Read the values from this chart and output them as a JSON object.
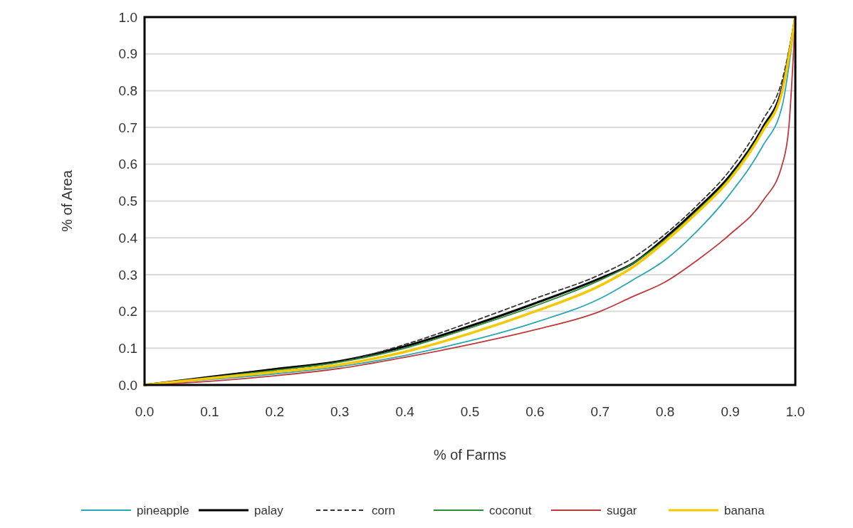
{
  "chart_data": {
    "type": "line",
    "xlabel": "% of Farms",
    "ylabel": "% of Area",
    "x": [
      0,
      0.1,
      0.2,
      0.3,
      0.4,
      0.5,
      0.6,
      0.7,
      0.75,
      0.8,
      0.85,
      0.9,
      0.95,
      0.98,
      1.0
    ],
    "series": [
      {
        "name": "pineapple",
        "color": "#2aa6b4",
        "values": [
          0,
          0.015,
          0.03,
          0.05,
          0.08,
          0.12,
          0.17,
          0.235,
          0.285,
          0.34,
          0.42,
          0.52,
          0.65,
          0.76,
          1.0
        ]
      },
      {
        "name": "palay",
        "color": "#000000",
        "values": [
          0,
          0.022,
          0.043,
          0.065,
          0.105,
          0.16,
          0.222,
          0.29,
          0.33,
          0.4,
          0.48,
          0.57,
          0.7,
          0.81,
          1.0
        ]
      },
      {
        "name": "corn",
        "color": "#333333",
        "line_style": "dashed",
        "values": [
          0,
          0.02,
          0.04,
          0.063,
          0.11,
          0.17,
          0.235,
          0.3,
          0.345,
          0.41,
          0.49,
          0.585,
          0.72,
          0.83,
          1.0
        ]
      },
      {
        "name": "coconut",
        "color": "#2e8b3a",
        "values": [
          0,
          0.02,
          0.04,
          0.062,
          0.1,
          0.155,
          0.215,
          0.285,
          0.33,
          0.395,
          0.475,
          0.565,
          0.695,
          0.805,
          1.0
        ]
      },
      {
        "name": "sugar",
        "color": "#c0393b",
        "x": [
          0,
          0.1,
          0.2,
          0.3,
          0.4,
          0.5,
          0.6,
          0.7,
          0.75,
          0.8,
          0.85,
          0.9,
          0.95,
          0.98,
          0.99,
          1.0
        ],
        "values": [
          0,
          0.01,
          0.025,
          0.045,
          0.075,
          0.11,
          0.15,
          0.2,
          0.24,
          0.28,
          0.34,
          0.41,
          0.5,
          0.6,
          0.7,
          1.0
        ]
      },
      {
        "name": "banana",
        "color": "#f5c800",
        "values": [
          0,
          0.018,
          0.035,
          0.055,
          0.09,
          0.14,
          0.2,
          0.27,
          0.32,
          0.39,
          0.47,
          0.56,
          0.69,
          0.8,
          1.0
        ]
      }
    ],
    "xlim": [
      0,
      1
    ],
    "ylim": [
      0,
      1
    ],
    "xticks": [
      {
        "value": 0,
        "label": "0.0"
      },
      0.1,
      0.2,
      0.3,
      0.4,
      0.5,
      0.6,
      0.7,
      0.8,
      0.9,
      {
        "value": 1,
        "label": "1.0"
      }
    ],
    "yticks": [
      {
        "value": 0,
        "label": "0.0"
      },
      0.1,
      0.2,
      0.3,
      0.4,
      0.5,
      0.6,
      0.7,
      0.8,
      0.9,
      {
        "value": 1,
        "label": "1.0"
      }
    ],
    "grid": "y",
    "legend": "bottom",
    "marker": "none",
    "line_style": "solid"
  }
}
